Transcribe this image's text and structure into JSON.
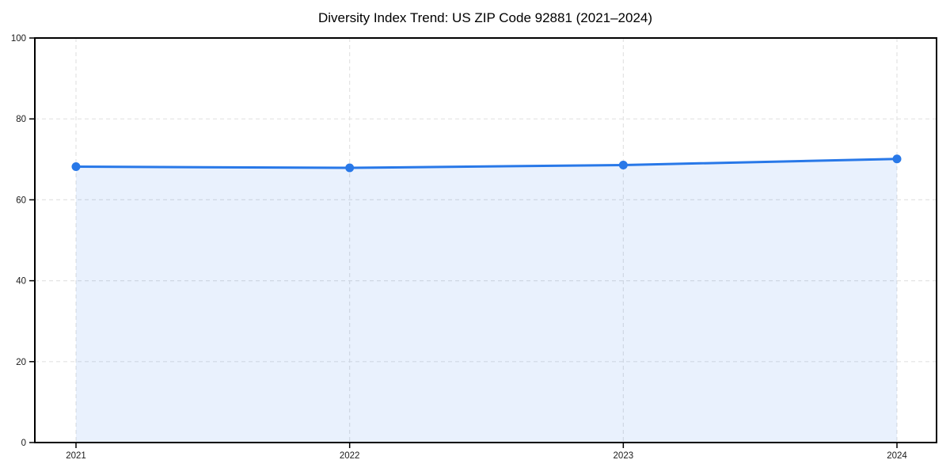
{
  "chart_data": {
    "type": "area",
    "title": "Diversity Index Trend: US ZIP Code 92881 (2021–2024)",
    "categories": [
      "2021",
      "2022",
      "2023",
      "2024"
    ],
    "values": [
      68.2,
      67.9,
      68.6,
      70.1
    ],
    "xlabel": "",
    "ylabel": "",
    "ylim": [
      0,
      100
    ],
    "y_ticks": [
      0,
      20,
      40,
      60,
      80,
      100
    ],
    "grid": true,
    "grid_style": "dashed",
    "legend": false,
    "marker": "circle",
    "colors": {
      "line": "#2878e8",
      "marker": "#2878e8",
      "area_fill": "rgba(40,120,232,0.10)",
      "gridline": "#e3e3e3",
      "axis": "#000000",
      "tick_label": "#1a1a1a",
      "title": "#000000",
      "background": "#ffffff"
    }
  }
}
